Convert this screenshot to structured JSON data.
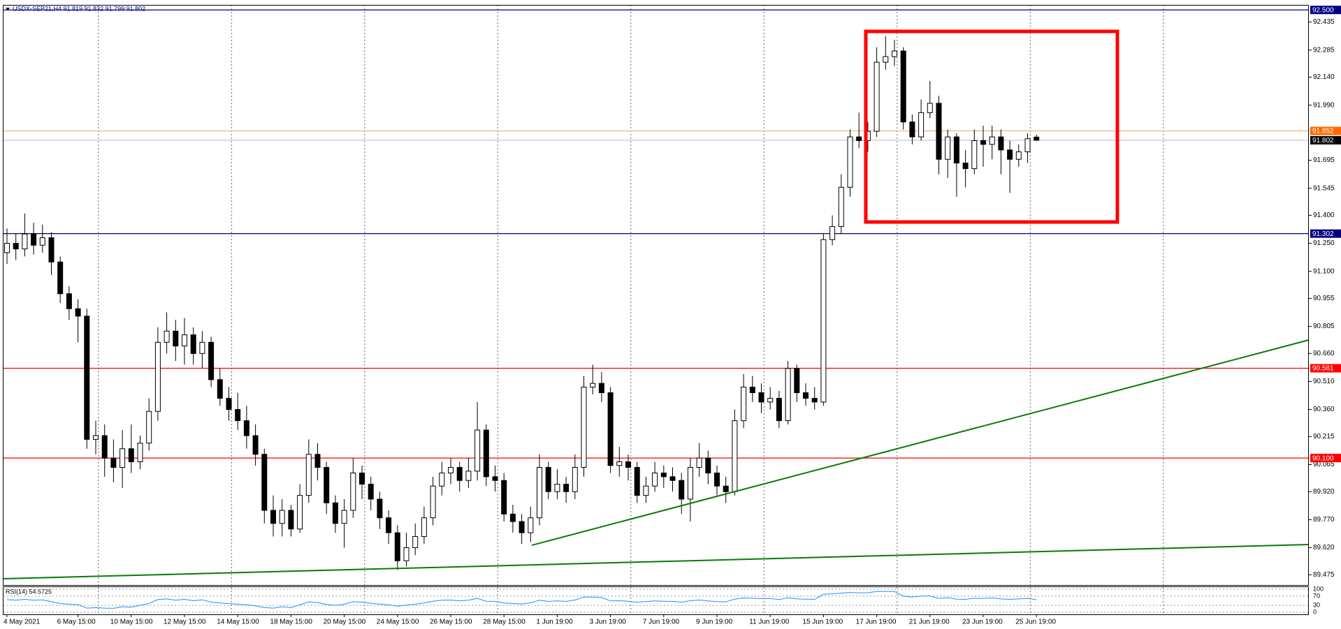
{
  "chart_data": {
    "type": "candlestick",
    "title": "USDX-SEP21,H4  91.819 91.832 91.799 91.802",
    "categories": [
      "4 May 2021",
      null,
      null,
      null,
      null,
      null,
      null,
      null,
      "6 May 15:00",
      null,
      null,
      null,
      null,
      null,
      "10 May 15:00",
      null,
      null,
      null,
      null,
      null,
      "12 May 15:00",
      null,
      null,
      null,
      null,
      null,
      "14 May 15:00",
      null,
      null,
      null,
      null,
      null,
      "18 May 15:00",
      null,
      null,
      null,
      null,
      null,
      "20 May 15:00",
      null,
      null,
      null,
      null,
      null,
      "24 May 15:00",
      null,
      null,
      null,
      null,
      null,
      "26 May 15:00",
      null,
      null,
      null,
      null,
      null,
      "28 May 15:00",
      null,
      null,
      null,
      null,
      null,
      "1 Jun 19:00",
      null,
      null,
      null,
      null,
      null,
      "3 Jun 19:00",
      null,
      null,
      null,
      null,
      null,
      "7 Jun 19:00",
      null,
      null,
      null,
      null,
      null,
      "9 Jun 19:00",
      null,
      null,
      null,
      null,
      null,
      "11 Jun 19:00",
      null,
      null,
      null,
      null,
      null,
      "15 Jun 19:00",
      null,
      null,
      null,
      null,
      null,
      "17 Jun 19:00",
      null,
      null,
      null,
      null,
      null,
      "21 Jun 19:00",
      null,
      null,
      null,
      null,
      null,
      "23 Jun 19:00",
      null,
      null,
      null,
      null,
      null,
      "25 Jun 19:00"
    ],
    "open": [
      91.2,
      91.25,
      91.22,
      91.3,
      91.24,
      91.28,
      91.15,
      90.98,
      90.9,
      90.86,
      90.2,
      90.22,
      90.1,
      90.05,
      90.15,
      90.08,
      90.18,
      90.35,
      90.72,
      90.78,
      90.7,
      90.76,
      90.66,
      90.72,
      90.52,
      90.42,
      90.36,
      90.3,
      90.22,
      90.12,
      89.82,
      89.75,
      89.82,
      89.72,
      89.9,
      90.12,
      90.05,
      89.86,
      89.75,
      89.82,
      90.02,
      89.96,
      89.88,
      89.78,
      89.7,
      89.55,
      89.62,
      89.68,
      89.78,
      89.95,
      90.02,
      90.05,
      89.98,
      90.03,
      90.25,
      90,
      89.98,
      89.8,
      89.76,
      89.7,
      89.78,
      90.05,
      89.92,
      89.96,
      89.92,
      90.05,
      90.48,
      90.5,
      90.45,
      90.06,
      90.08,
      90.05,
      89.9,
      89.95,
      90.02,
      90,
      89.98,
      89.88,
      90.05,
      90.1,
      90.02,
      89.95,
      89.92,
      90.3,
      90.48,
      90.45,
      90.4,
      90.42,
      90.3,
      90.58,
      90.45,
      90.42,
      90.4,
      91.27,
      91.34,
      91.55,
      91.82,
      91.8,
      91.85,
      92.22,
      92.25,
      92.28,
      91.9,
      91.82,
      91.95,
      92,
      91.7,
      91.82,
      91.68,
      91.65,
      91.8,
      91.78,
      91.82,
      91.75,
      91.7,
      91.74,
      91.819
    ],
    "high": [
      91.33,
      91.3,
      91.41,
      91.36,
      91.35,
      91.31,
      91.18,
      91.02,
      90.95,
      90.9,
      90.3,
      90.28,
      90.2,
      90.25,
      90.28,
      90.22,
      90.42,
      90.8,
      90.88,
      90.84,
      90.85,
      90.8,
      90.78,
      90.75,
      90.58,
      90.48,
      90.45,
      90.38,
      90.28,
      90.15,
      89.9,
      89.88,
      89.85,
      89.96,
      90.2,
      90.18,
      90.08,
      89.9,
      89.88,
      90.1,
      90.06,
      90,
      89.92,
      89.82,
      89.74,
      89.7,
      89.75,
      89.84,
      90,
      90.08,
      90.1,
      90.08,
      90.1,
      90.4,
      90.28,
      90.06,
      90.02,
      89.85,
      89.8,
      89.84,
      90.12,
      90.08,
      90.04,
      90,
      90.12,
      90.54,
      90.6,
      90.56,
      90.48,
      90.16,
      90.12,
      90.08,
      90,
      90.08,
      90.06,
      90.05,
      90.02,
      90.1,
      90.18,
      90.14,
      90.06,
      90,
      90.36,
      90.55,
      90.54,
      90.5,
      90.48,
      90.46,
      90.62,
      90.6,
      90.5,
      90.48,
      91.3,
      91.4,
      91.62,
      91.86,
      91.95,
      91.9,
      92.3,
      92.36,
      92.34,
      92.3,
      91.94,
      92.02,
      92.12,
      92.04,
      91.86,
      91.84,
      91.75,
      91.86,
      91.88,
      91.88,
      91.86,
      91.8,
      91.78,
      91.84,
      91.832
    ],
    "low": [
      91.14,
      91.16,
      91.18,
      91.19,
      91.2,
      91.08,
      90.93,
      90.84,
      90.72,
      90.15,
      90.12,
      90,
      89.97,
      89.94,
      90.02,
      90.04,
      90.14,
      90.3,
      90.66,
      90.62,
      90.6,
      90.6,
      90.58,
      90.48,
      90.38,
      90.3,
      90.25,
      90.15,
      90.06,
      89.75,
      89.68,
      89.68,
      89.68,
      89.7,
      89.86,
      89.98,
      89.8,
      89.7,
      89.62,
      89.78,
      89.88,
      89.82,
      89.72,
      89.64,
      89.5,
      89.52,
      89.58,
      89.64,
      89.74,
      89.9,
      89.96,
      89.92,
      89.94,
      89.98,
      89.95,
      89.92,
      89.76,
      89.7,
      89.64,
      89.65,
      89.74,
      89.88,
      89.88,
      89.86,
      89.88,
      90,
      90.44,
      90.4,
      90.02,
      90,
      89.98,
      89.86,
      89.86,
      89.92,
      89.94,
      89.92,
      89.8,
      89.76,
      90,
      89.96,
      89.9,
      89.86,
      89.9,
      90.26,
      90.4,
      90.34,
      90.36,
      90.26,
      90.28,
      90.4,
      90.38,
      90.36,
      90.38,
      91.24,
      91.3,
      91.5,
      91.76,
      91.74,
      91.82,
      92.18,
      92.2,
      91.86,
      91.78,
      91.8,
      91.92,
      91.62,
      91.6,
      91.5,
      91.55,
      91.62,
      91.66,
      91.7,
      91.62,
      91.52,
      91.66,
      91.68,
      91.799
    ],
    "close": [
      91.25,
      91.22,
      91.3,
      91.24,
      91.28,
      91.15,
      90.98,
      90.9,
      90.86,
      90.2,
      90.22,
      90.1,
      90.05,
      90.15,
      90.08,
      90.18,
      90.35,
      90.72,
      90.78,
      90.7,
      90.76,
      90.66,
      90.72,
      90.52,
      90.42,
      90.36,
      90.3,
      90.22,
      90.12,
      89.82,
      89.75,
      89.82,
      89.72,
      89.9,
      90.12,
      90.05,
      89.86,
      89.75,
      89.82,
      90.02,
      89.96,
      89.88,
      89.78,
      89.7,
      89.55,
      89.62,
      89.68,
      89.78,
      89.95,
      90.02,
      90.05,
      89.98,
      90.03,
      90.25,
      90,
      89.98,
      89.8,
      89.76,
      89.7,
      89.78,
      90.05,
      89.92,
      89.96,
      89.92,
      90.05,
      90.48,
      90.5,
      90.45,
      90.06,
      90.08,
      90.05,
      89.9,
      89.95,
      90.02,
      90,
      89.98,
      89.88,
      90.05,
      90.1,
      90.02,
      89.95,
      89.92,
      90.3,
      90.48,
      90.45,
      90.4,
      90.42,
      90.3,
      90.58,
      90.45,
      90.42,
      90.4,
      91.27,
      91.34,
      91.55,
      91.82,
      91.8,
      91.85,
      92.22,
      92.25,
      92.28,
      91.9,
      91.82,
      91.95,
      92,
      91.7,
      91.82,
      91.68,
      91.65,
      91.8,
      91.78,
      91.82,
      91.75,
      91.7,
      91.74,
      91.81,
      91.802
    ],
    "ylim": [
      89.42,
      92.527
    ],
    "yticks": [
      92.435,
      92.285,
      {
        "value": 92.14,
        "label": "92.140"
      },
      {
        "value": 91.99,
        "label": "91.990"
      },
      91.695,
      91.545,
      {
        "value": 91.4,
        "label": "91.400"
      },
      {
        "value": 91.25,
        "label": "91.250"
      },
      {
        "value": 91.1,
        "label": "91.100"
      },
      90.955,
      90.805,
      {
        "value": 90.66,
        "label": "90.660"
      },
      {
        "value": 90.51,
        "label": "90.510"
      },
      {
        "value": 90.36,
        "label": "90.360"
      },
      90.215,
      90.065,
      {
        "value": 89.92,
        "label": "89.920"
      },
      {
        "value": 89.77,
        "label": "89.770"
      },
      {
        "value": 89.62,
        "label": "89.620"
      },
      89.475
    ],
    "levels": [
      {
        "value": 92.5,
        "label": "92.500",
        "color": "#000080",
        "label_color": "#000080"
      },
      {
        "value": 91.302,
        "label": "91.302",
        "color": "#000080",
        "label_color": "#000080"
      },
      {
        "value": 90.581,
        "label": "90.581",
        "color": "#ff0000",
        "label_color": "#ff0000"
      },
      {
        "value": 90.1,
        "label": "90.100",
        "color": "#ff0000",
        "label_color": "#ff0000"
      },
      {
        "value": 91.852,
        "label": "91.852",
        "color": "#f7b08a",
        "label_color": "#ff6a00"
      },
      {
        "value": 91.802,
        "label": "91.802",
        "color": "#c8c8c8",
        "label_color": "#000000"
      }
    ],
    "grid": true,
    "rsi": {
      "title": "RSI(14) 54.5725",
      "color": "#1e90ff",
      "ylim": [
        0,
        100
      ],
      "yticks": [
        100,
        70,
        30,
        0
      ],
      "values": [
        55,
        52,
        56,
        52,
        54,
        46,
        38,
        35,
        33,
        18,
        20,
        18,
        17,
        24,
        22,
        30,
        38,
        55,
        58,
        52,
        56,
        50,
        54,
        44,
        40,
        37,
        35,
        32,
        28,
        20,
        18,
        24,
        20,
        32,
        45,
        42,
        34,
        30,
        35,
        46,
        43,
        39,
        35,
        32,
        26,
        31,
        35,
        40,
        48,
        52,
        53,
        49,
        52,
        60,
        48,
        47,
        40,
        38,
        36,
        41,
        52,
        47,
        49,
        47,
        53,
        66,
        66,
        64,
        49,
        50,
        48,
        44,
        46,
        49,
        48,
        47,
        44,
        50,
        53,
        49,
        46,
        45,
        57,
        62,
        61,
        59,
        60,
        55,
        63,
        58,
        57,
        56,
        78,
        80,
        83,
        86,
        84,
        85,
        90,
        90,
        90,
        70,
        66,
        70,
        71,
        60,
        63,
        57,
        56,
        61,
        60,
        62,
        58,
        56,
        58,
        60,
        54.5725
      ]
    }
  }
}
